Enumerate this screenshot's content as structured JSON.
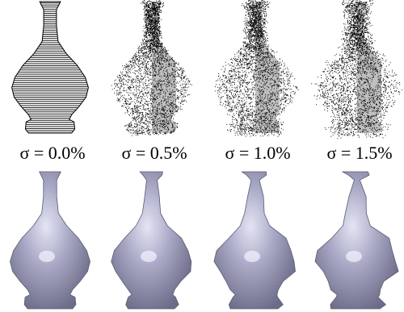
{
  "panels": [
    {
      "label": "σ = 0.0%"
    },
    {
      "label": "σ = 0.5%"
    },
    {
      "label": "σ = 1.0%"
    },
    {
      "label": "σ = 1.5%"
    }
  ]
}
